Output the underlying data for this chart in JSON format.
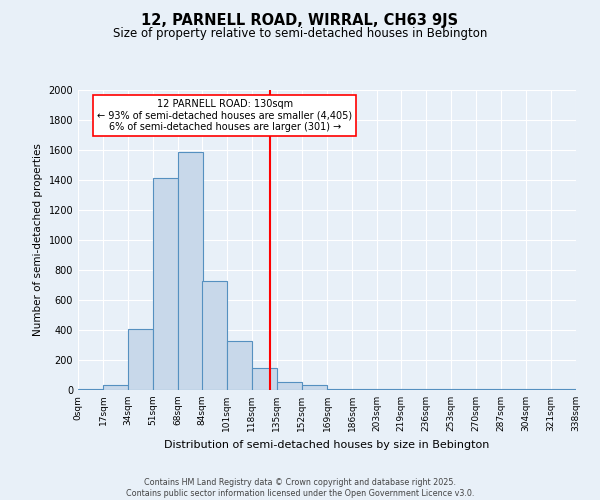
{
  "title": "12, PARNELL ROAD, WIRRAL, CH63 9JS",
  "subtitle": "Size of property relative to semi-detached houses in Bebington",
  "xlabel": "Distribution of semi-detached houses by size in Bebington",
  "ylabel": "Number of semi-detached properties",
  "bin_labels": [
    "0sqm",
    "17sqm",
    "34sqm",
    "51sqm",
    "68sqm",
    "84sqm",
    "101sqm",
    "118sqm",
    "135sqm",
    "152sqm",
    "169sqm",
    "186sqm",
    "203sqm",
    "219sqm",
    "236sqm",
    "253sqm",
    "270sqm",
    "287sqm",
    "304sqm",
    "321sqm",
    "338sqm"
  ],
  "bin_edges": [
    0,
    17,
    34,
    51,
    68,
    84,
    101,
    118,
    135,
    152,
    169,
    186,
    203,
    219,
    236,
    253,
    270,
    287,
    304,
    321,
    338
  ],
  "bar_heights": [
    10,
    35,
    405,
    1415,
    1590,
    725,
    325,
    150,
    55,
    35,
    10,
    5,
    5,
    5,
    5,
    5,
    5,
    5,
    5,
    5
  ],
  "bar_color": "#c8d8ea",
  "bar_edge_color": "#5590c0",
  "vline_x": 130,
  "vline_color": "red",
  "annotation_title": "12 PARNELL ROAD: 130sqm",
  "annotation_line1": "← 93% of semi-detached houses are smaller (4,405)",
  "annotation_line2": "6% of semi-detached houses are larger (301) →",
  "ylim": [
    0,
    2000
  ],
  "yticks": [
    0,
    200,
    400,
    600,
    800,
    1000,
    1200,
    1400,
    1600,
    1800,
    2000
  ],
  "background_color": "#e8f0f8",
  "footer1": "Contains HM Land Registry data © Crown copyright and database right 2025.",
  "footer2": "Contains public sector information licensed under the Open Government Licence v3.0."
}
